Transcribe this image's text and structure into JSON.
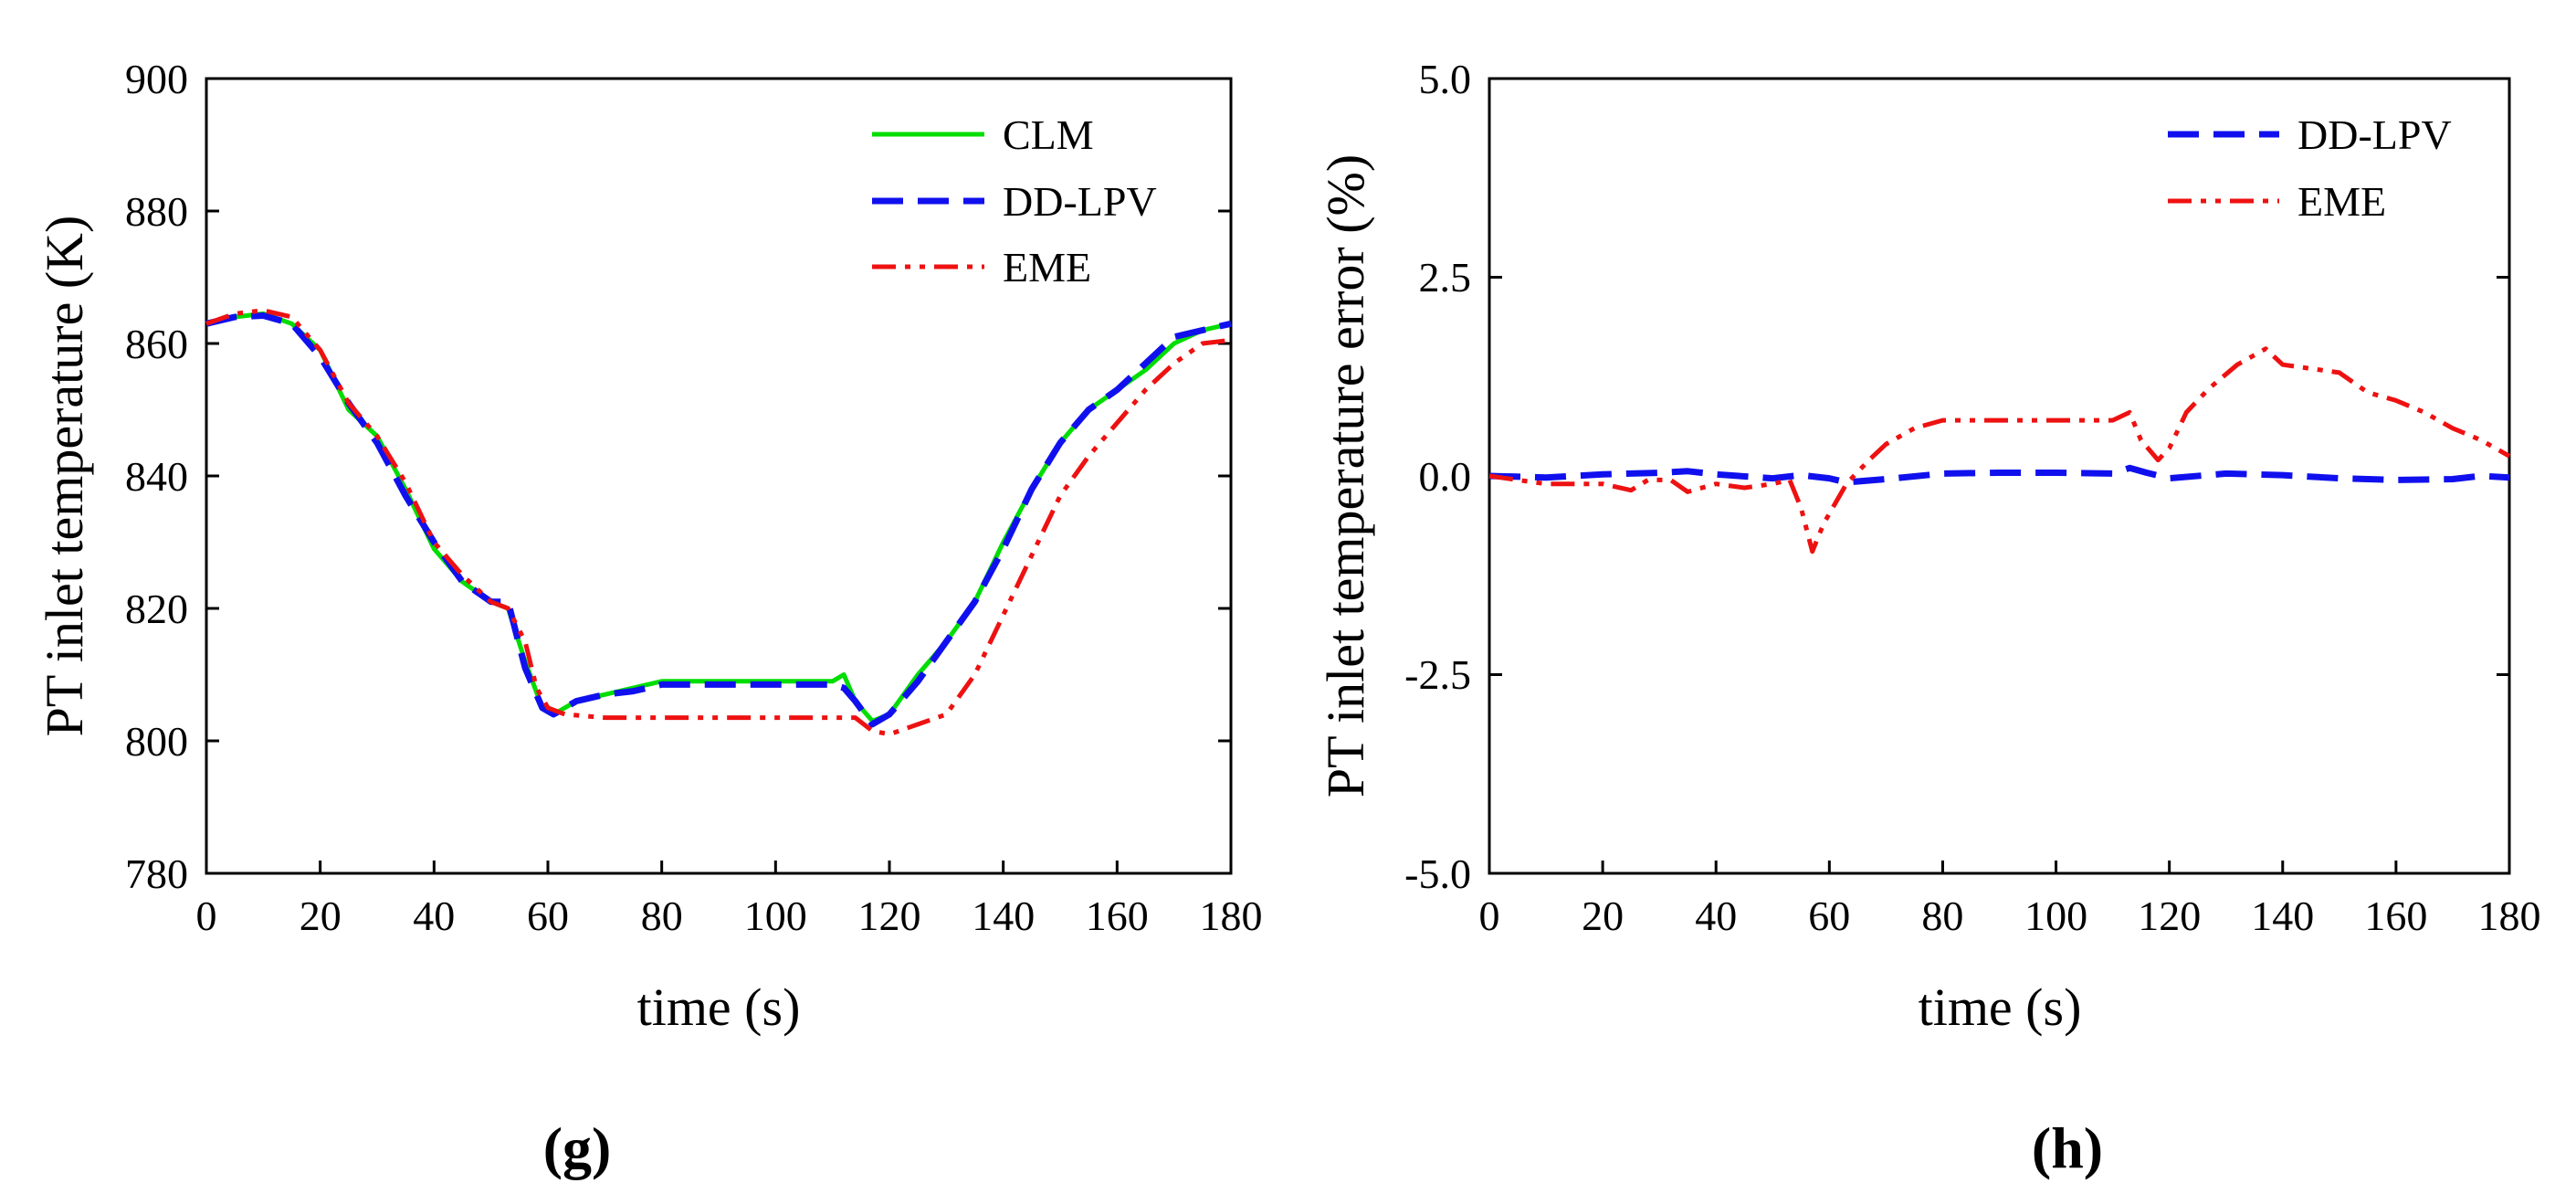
{
  "colors": {
    "clm": "#00dd00",
    "ddlpv": "#1010ee",
    "eme": "#ee1111",
    "axis": "#000000"
  },
  "chart_data": [
    {
      "type": "line",
      "panel_label": "(g)",
      "xlabel": "time (s)",
      "ylabel": "PT inlet temperature (K)",
      "xlim": [
        0,
        180
      ],
      "ylim": [
        780,
        900
      ],
      "xticks": [
        0,
        20,
        40,
        60,
        80,
        100,
        120,
        140,
        160,
        180
      ],
      "xtick_labels": [
        "0",
        "20",
        "40",
        "60",
        "80",
        "100",
        "120",
        "140",
        "160",
        "180"
      ],
      "yticks": [
        780,
        800,
        820,
        840,
        860,
        880,
        900
      ],
      "ytick_labels": [
        "780",
        "800",
        "820",
        "840",
        "860",
        "880",
        "900"
      ],
      "legend_position": "top-right",
      "series": [
        {
          "name": "CLM",
          "style": "solid",
          "color_key": "clm",
          "points": [
            [
              0,
              863
            ],
            [
              5,
              864
            ],
            [
              10,
              864.5
            ],
            [
              15,
              863
            ],
            [
              20,
              859
            ],
            [
              25,
              850
            ],
            [
              30,
              846
            ],
            [
              35,
              838
            ],
            [
              40,
              829
            ],
            [
              45,
              824
            ],
            [
              50,
              821
            ],
            [
              53,
              820
            ],
            [
              56,
              812
            ],
            [
              59,
              805
            ],
            [
              61,
              804
            ],
            [
              65,
              806
            ],
            [
              70,
              807
            ],
            [
              75,
              808
            ],
            [
              80,
              809
            ],
            [
              90,
              809
            ],
            [
              100,
              809
            ],
            [
              110,
              809
            ],
            [
              112,
              810
            ],
            [
              114,
              806
            ],
            [
              117,
              803
            ],
            [
              120,
              804
            ],
            [
              125,
              810
            ],
            [
              130,
              815
            ],
            [
              135,
              821
            ],
            [
              140,
              830
            ],
            [
              145,
              838
            ],
            [
              150,
              845
            ],
            [
              155,
              850
            ],
            [
              160,
              853
            ],
            [
              165,
              856
            ],
            [
              170,
              860
            ],
            [
              175,
              862
            ],
            [
              180,
              863
            ]
          ]
        },
        {
          "name": "DD-LPV",
          "style": "dashed",
          "color_key": "ddlpv",
          "points": [
            [
              0,
              863
            ],
            [
              5,
              864
            ],
            [
              10,
              864.2
            ],
            [
              15,
              863
            ],
            [
              20,
              858
            ],
            [
              25,
              851
            ],
            [
              30,
              845
            ],
            [
              35,
              837
            ],
            [
              40,
              830
            ],
            [
              45,
              824
            ],
            [
              50,
              821
            ],
            [
              53,
              821
            ],
            [
              56,
              811
            ],
            [
              59,
              805
            ],
            [
              61,
              804
            ],
            [
              65,
              806
            ],
            [
              70,
              807
            ],
            [
              75,
              807.5
            ],
            [
              80,
              808.5
            ],
            [
              90,
              808.5
            ],
            [
              100,
              808.5
            ],
            [
              110,
              808.5
            ],
            [
              112,
              808
            ],
            [
              114,
              806
            ],
            [
              117,
              802.5
            ],
            [
              120,
              804
            ],
            [
              125,
              809
            ],
            [
              130,
              815
            ],
            [
              135,
              821
            ],
            [
              140,
              829
            ],
            [
              145,
              838
            ],
            [
              150,
              845
            ],
            [
              155,
              850
            ],
            [
              160,
              853
            ],
            [
              165,
              857
            ],
            [
              170,
              861
            ],
            [
              175,
              862
            ],
            [
              180,
              863
            ]
          ]
        },
        {
          "name": "EME",
          "style": "dashdotdot",
          "color_key": "eme",
          "points": [
            [
              0,
              863
            ],
            [
              5,
              864.5
            ],
            [
              10,
              865
            ],
            [
              15,
              864
            ],
            [
              20,
              859
            ],
            [
              25,
              851
            ],
            [
              30,
              846
            ],
            [
              35,
              839
            ],
            [
              40,
              830
            ],
            [
              45,
              825
            ],
            [
              50,
              821
            ],
            [
              53,
              820
            ],
            [
              56,
              815
            ],
            [
              58,
              808
            ],
            [
              60,
              805
            ],
            [
              63,
              804
            ],
            [
              70,
              803.5
            ],
            [
              80,
              803.5
            ],
            [
              90,
              803.5
            ],
            [
              100,
              803.5
            ],
            [
              110,
              803.5
            ],
            [
              114,
              803.5
            ],
            [
              117,
              801.5
            ],
            [
              120,
              801
            ],
            [
              125,
              802.5
            ],
            [
              130,
              804
            ],
            [
              135,
              810
            ],
            [
              140,
              819
            ],
            [
              145,
              828
            ],
            [
              150,
              837
            ],
            [
              155,
              843
            ],
            [
              160,
              848
            ],
            [
              165,
              853
            ],
            [
              170,
              857
            ],
            [
              175,
              860
            ],
            [
              180,
              860.5
            ]
          ]
        }
      ]
    },
    {
      "type": "line",
      "panel_label": "(h)",
      "xlabel": "time (s)",
      "ylabel": "PT inlet temperature error (%)",
      "xlim": [
        0,
        180
      ],
      "ylim": [
        -5,
        5
      ],
      "xticks": [
        0,
        20,
        40,
        60,
        80,
        100,
        120,
        140,
        160,
        180
      ],
      "xtick_labels": [
        "0",
        "20",
        "40",
        "60",
        "80",
        "100",
        "120",
        "140",
        "160",
        "180"
      ],
      "yticks": [
        -5,
        -2.5,
        0,
        2.5,
        5
      ],
      "ytick_labels": [
        "-5.0",
        "-2.5",
        "0.0",
        "2.5",
        "5.0"
      ],
      "legend_position": "top-right",
      "series": [
        {
          "name": "DD-LPV",
          "style": "dashed",
          "color_key": "ddlpv",
          "points": [
            [
              0,
              0
            ],
            [
              10,
              -0.02
            ],
            [
              20,
              0.02
            ],
            [
              30,
              0.04
            ],
            [
              35,
              0.06
            ],
            [
              40,
              0.02
            ],
            [
              50,
              -0.03
            ],
            [
              55,
              0.01
            ],
            [
              60,
              -0.03
            ],
            [
              63,
              -0.08
            ],
            [
              70,
              -0.04
            ],
            [
              80,
              0.03
            ],
            [
              90,
              0.04
            ],
            [
              100,
              0.04
            ],
            [
              110,
              0.03
            ],
            [
              113,
              0.1
            ],
            [
              116,
              0.04
            ],
            [
              120,
              -0.03
            ],
            [
              130,
              0.03
            ],
            [
              140,
              0.01
            ],
            [
              150,
              -0.03
            ],
            [
              160,
              -0.05
            ],
            [
              170,
              -0.04
            ],
            [
              175,
              0.0
            ],
            [
              180,
              -0.02
            ]
          ]
        },
        {
          "name": "EME",
          "style": "dashdotdot",
          "color_key": "eme",
          "points": [
            [
              0,
              0
            ],
            [
              5,
              -0.05
            ],
            [
              10,
              -0.1
            ],
            [
              20,
              -0.1
            ],
            [
              25,
              -0.18
            ],
            [
              28,
              -0.05
            ],
            [
              32,
              -0.05
            ],
            [
              35,
              -0.2
            ],
            [
              40,
              -0.1
            ],
            [
              45,
              -0.15
            ],
            [
              50,
              -0.1
            ],
            [
              53,
              -0.05
            ],
            [
              55,
              -0.4
            ],
            [
              57,
              -0.95
            ],
            [
              59,
              -0.6
            ],
            [
              61,
              -0.35
            ],
            [
              63,
              -0.1
            ],
            [
              67,
              0.2
            ],
            [
              70,
              0.4
            ],
            [
              75,
              0.6
            ],
            [
              80,
              0.7
            ],
            [
              90,
              0.7
            ],
            [
              100,
              0.7
            ],
            [
              110,
              0.7
            ],
            [
              113,
              0.8
            ],
            [
              115,
              0.45
            ],
            [
              118,
              0.2
            ],
            [
              120,
              0.35
            ],
            [
              123,
              0.8
            ],
            [
              127,
              1.1
            ],
            [
              132,
              1.4
            ],
            [
              137,
              1.6
            ],
            [
              140,
              1.4
            ],
            [
              145,
              1.35
            ],
            [
              150,
              1.3
            ],
            [
              155,
              1.05
            ],
            [
              160,
              0.95
            ],
            [
              165,
              0.8
            ],
            [
              170,
              0.6
            ],
            [
              175,
              0.45
            ],
            [
              180,
              0.25
            ]
          ]
        }
      ]
    }
  ]
}
